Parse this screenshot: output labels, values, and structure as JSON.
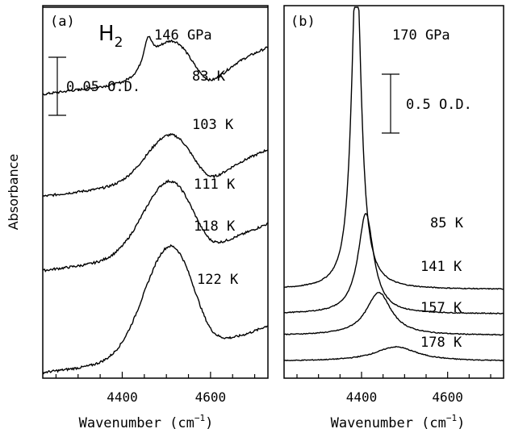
{
  "chart_data": [
    {
      "panel": "(a)",
      "type": "line",
      "species": "H",
      "species_subscript": "2",
      "pressure": "146 GPa",
      "scale_bar_label": "0.05 O.D.",
      "xlabel": "Wavenumber (cm",
      "xlabel_exp": "−1",
      "xlabel_close": ")",
      "xlim": [
        4220,
        4730
      ],
      "xticks": [
        4400,
        4600
      ],
      "x_tick_labels": [
        "4400",
        "4600"
      ],
      "series": [
        {
          "name": "83 K",
          "offset": 0.4,
          "peak": {
            "center": 4463,
            "height": 0.055,
            "width": 9
          },
          "shoulder": {
            "center": 4395,
            "height": 0.012,
            "width": 25
          },
          "broad": {
            "center": 4520,
            "height": 0.018,
            "width": 40
          },
          "trough_at": 4590,
          "end_rise": 0.05
        },
        {
          "name": "103 K",
          "offset": 0.3,
          "peak": {
            "center": 4458,
            "height": 0.03,
            "width": 12
          },
          "broad": {
            "center": 4515,
            "height": 0.04,
            "width": 45
          }
        },
        {
          "name": "111 K",
          "offset": 0.19,
          "broad": {
            "center": 4510,
            "height": 0.05,
            "width": 55
          }
        },
        {
          "name": "118 K",
          "offset": 0.11,
          "broad": {
            "center": 4508,
            "height": 0.08,
            "width": 60
          }
        },
        {
          "name": "122 K",
          "offset": 0.0,
          "broad": {
            "center": 4510,
            "height": 0.12,
            "width": 60
          }
        }
      ]
    },
    {
      "panel": "(b)",
      "type": "line",
      "pressure": "170 GPa",
      "scale_bar_label": "0.5 O.D.",
      "xlabel": "Wavenumber (cm",
      "xlabel_exp": "−1",
      "xlabel_close": ")",
      "xlim": [
        4220,
        4730
      ],
      "xticks": [
        4400,
        4600
      ],
      "x_tick_labels": [
        "4400",
        "4600"
      ],
      "series": [
        {
          "name": "85 K",
          "offset": 0.5,
          "peak": {
            "center": 4388,
            "height": 2.3,
            "width": 14
          }
        },
        {
          "name": "141 K",
          "offset": 0.33,
          "peak": {
            "center": 4410,
            "height": 0.7,
            "width": 22
          }
        },
        {
          "name": "157 K",
          "offset": 0.18,
          "peak": {
            "center": 4440,
            "height": 0.3,
            "width": 35
          }
        },
        {
          "name": "178 K",
          "offset": 0.0,
          "peak": {
            "center": 4480,
            "height": 0.1,
            "width": 60
          }
        }
      ]
    }
  ],
  "ylabel": "Absorbance"
}
